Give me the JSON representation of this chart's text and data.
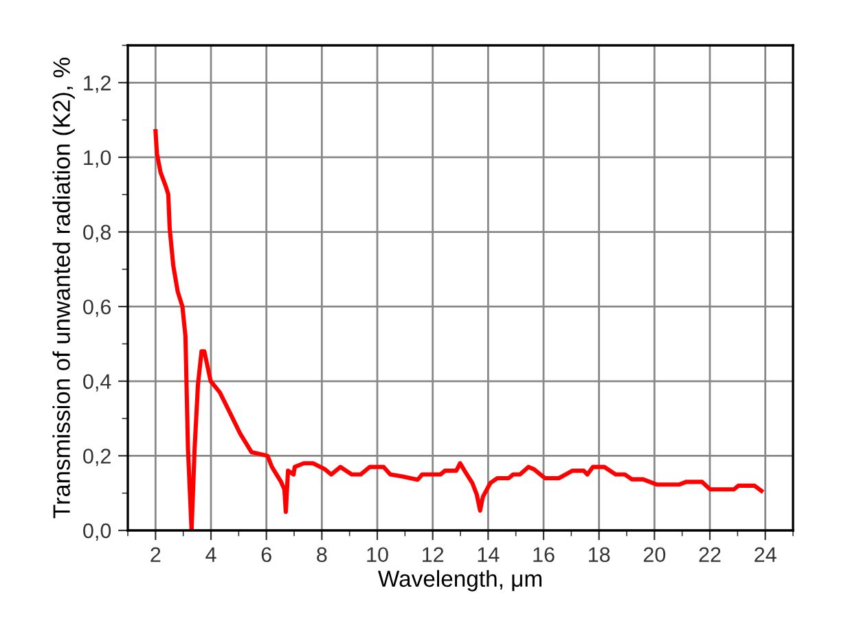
{
  "chart_data": {
    "type": "line",
    "xlabel": "Wavelength, μm",
    "ylabel": "Transmission of unwanted radiation (K2), %",
    "xlim": [
      1,
      25
    ],
    "xticks": [
      2,
      4,
      6,
      8,
      10,
      12,
      14,
      16,
      18,
      20,
      22,
      24
    ],
    "ylim": [
      0,
      1.3
    ],
    "yticks": [
      {
        "value": 0,
        "label": "0,0"
      },
      {
        "value": 0.2,
        "label": "0,2"
      },
      {
        "value": 0.4,
        "label": "0,4"
      },
      {
        "value": 0.6,
        "label": "0,6"
      },
      {
        "value": 0.8,
        "label": "0,8"
      },
      {
        "value": 1.0,
        "label": "1,0"
      },
      {
        "value": 1.2,
        "label": "1,2"
      }
    ],
    "grid": true,
    "marker": "none",
    "line_style": "solid",
    "series": [
      {
        "color": "#ff0000",
        "x": [
          2.0,
          2.05,
          2.18,
          2.38,
          2.46,
          2.51,
          2.64,
          2.8,
          2.97,
          3.08,
          3.17,
          3.3,
          3.41,
          3.53,
          3.66,
          3.76,
          3.99,
          4.32,
          4.72,
          5.05,
          5.46,
          6.04,
          6.2,
          6.53,
          6.65,
          6.7,
          6.78,
          6.98,
          7.02,
          7.35,
          7.68,
          8.09,
          8.34,
          8.67,
          9.08,
          9.4,
          9.73,
          10.23,
          10.47,
          10.88,
          11.46,
          11.62,
          12.28,
          12.44,
          12.85,
          12.99,
          13.15,
          13.43,
          13.59,
          13.71,
          13.81,
          14.08,
          14.33,
          14.74,
          14.9,
          15.15,
          15.45,
          15.65,
          16.05,
          16.55,
          17.04,
          17.45,
          17.58,
          17.78,
          18.19,
          18.6,
          18.93,
          19.18,
          19.59,
          20.08,
          20.9,
          21.14,
          21.72,
          22.01,
          22.87,
          23.03,
          23.61,
          23.86
        ],
        "values": [
          1.07,
          1.01,
          0.96,
          0.92,
          0.9,
          0.81,
          0.71,
          0.64,
          0.6,
          0.52,
          0.22,
          0.0,
          0.22,
          0.39,
          0.48,
          0.48,
          0.4,
          0.37,
          0.31,
          0.26,
          0.21,
          0.2,
          0.17,
          0.13,
          0.11,
          0.05,
          0.16,
          0.15,
          0.17,
          0.18,
          0.18,
          0.165,
          0.15,
          0.17,
          0.15,
          0.15,
          0.17,
          0.17,
          0.15,
          0.145,
          0.136,
          0.15,
          0.15,
          0.16,
          0.16,
          0.18,
          0.16,
          0.127,
          0.096,
          0.053,
          0.09,
          0.127,
          0.14,
          0.14,
          0.15,
          0.15,
          0.17,
          0.164,
          0.14,
          0.14,
          0.16,
          0.16,
          0.15,
          0.17,
          0.17,
          0.15,
          0.15,
          0.137,
          0.137,
          0.123,
          0.123,
          0.13,
          0.13,
          0.11,
          0.11,
          0.12,
          0.12,
          0.106
        ]
      }
    ]
  }
}
